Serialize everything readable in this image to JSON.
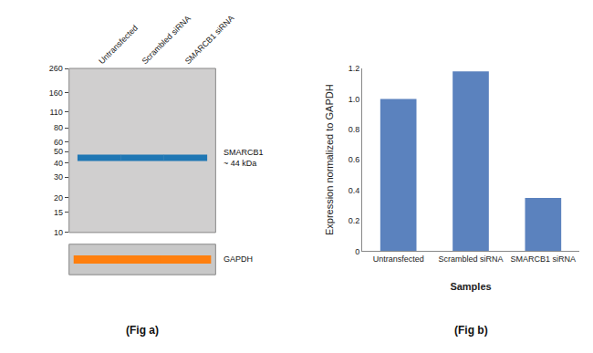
{
  "chart_data": [
    {
      "type": "blot",
      "title": "(Fig a)",
      "categories": [
        "Untransfected",
        "Scrambled siRNA",
        "SMARCB1 siRNA"
      ],
      "series": [
        {
          "name": "SMARCB1\n~ 44 kDa",
          "values": [
            44,
            44,
            44
          ]
        }
      ],
      "annotations": [
        "GAPDH"
      ],
      "ylim": [
        10,
        260
      ],
      "yticks": [
        260,
        160,
        110,
        80,
        60,
        50,
        40,
        30,
        20,
        15,
        10
      ],
      "log": "y",
      "grid": false
    },
    {
      "type": "bar",
      "title": "(Fig b)",
      "categories": [
        "Untransfected",
        "Scrambled siRNA",
        "SMARCB1 siRNA"
      ],
      "values": [
        1.0,
        1.18,
        0.35
      ],
      "color": "#5b82be",
      "xlabel": "Samples",
      "ylabel": "Expression normalized to GAPDH",
      "ylim": [
        0,
        1.2
      ],
      "yticks": [
        0,
        0.2,
        0.4,
        0.6,
        0.8,
        {
          "value": 1.0,
          "label": "1.0"
        },
        1.2
      ],
      "grid": false
    }
  ]
}
